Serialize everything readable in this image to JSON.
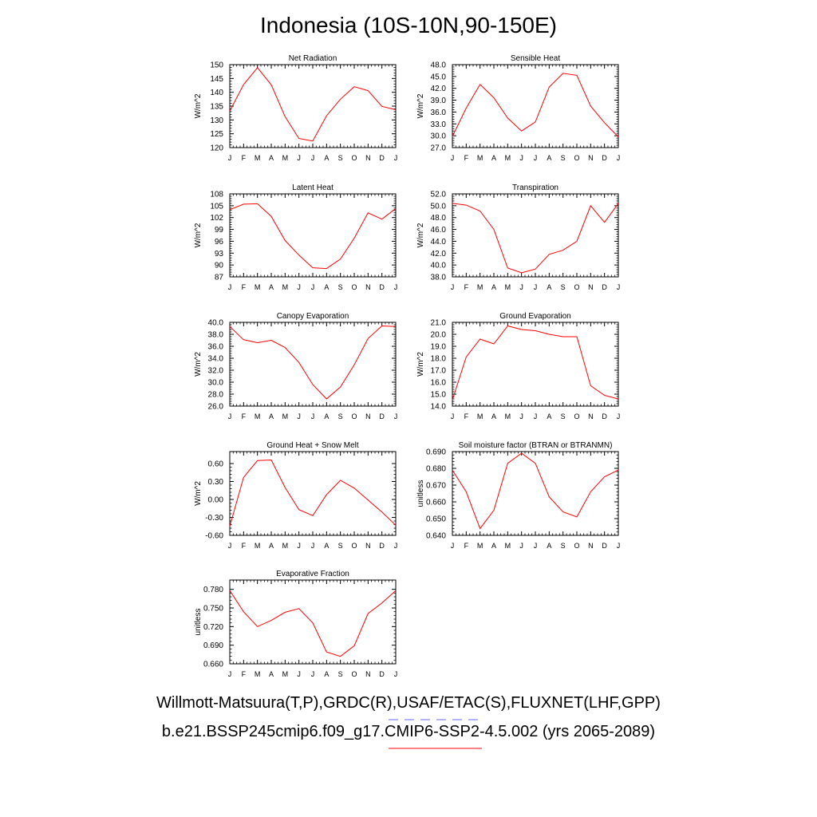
{
  "page": {
    "title": "Indonesia (10S-10N,90-150E)",
    "footer_line1": "Willmott-Matsuura(T,P),GRDC(R),USAF/ETAC(S),FLUXNET(LHF,GPP)",
    "footer_line2": "b.e21.BSSP245cmip6.f09_g17.CMIP6-SSP2-4.5.002 (yrs 2065-2089)",
    "legend_colors": {
      "obs": "#6666ff",
      "model": "#ff0000"
    }
  },
  "chart_data": [
    {
      "type": "line",
      "title": "Net Radiation",
      "ylabel": "W/m^2",
      "categories": [
        "J",
        "F",
        "M",
        "A",
        "M",
        "J",
        "J",
        "A",
        "S",
        "O",
        "N",
        "D",
        "J"
      ],
      "values": [
        133.2,
        142.8,
        148.9,
        142.7,
        131.2,
        123.3,
        122.4,
        131.5,
        137.5,
        142.0,
        140.6,
        134.9,
        133.7
      ],
      "ylim": [
        120,
        150
      ],
      "yticks": [
        "120",
        "125",
        "130",
        "135",
        "140",
        "145",
        "150"
      ],
      "color": "#ff0000"
    },
    {
      "type": "line",
      "title": "Sensible Heat",
      "ylabel": "W/m^2",
      "categories": [
        "J",
        "F",
        "M",
        "A",
        "M",
        "J",
        "J",
        "A",
        "S",
        "O",
        "N",
        "D",
        "J"
      ],
      "values": [
        29.8,
        37.0,
        43.0,
        39.6,
        34.5,
        31.2,
        33.5,
        42.3,
        45.8,
        45.3,
        37.5,
        33.3,
        29.7
      ],
      "ylim": [
        27.0,
        48.0
      ],
      "yticks": [
        "27.0",
        "30.0",
        "33.0",
        "36.0",
        "39.0",
        "42.0",
        "45.0",
        "48.0"
      ],
      "color": "#ff0000"
    },
    {
      "type": "line",
      "title": "Latent Heat",
      "ylabel": "W/m^2",
      "categories": [
        "J",
        "F",
        "M",
        "A",
        "M",
        "J",
        "J",
        "A",
        "S",
        "O",
        "N",
        "D",
        "J"
      ],
      "values": [
        104.0,
        105.4,
        105.5,
        102.3,
        96.2,
        92.5,
        89.3,
        89.1,
        91.5,
        96.8,
        103.2,
        101.6,
        104.3
      ],
      "ylim": [
        87,
        108
      ],
      "yticks": [
        "87",
        "90",
        "93",
        "96",
        "99",
        "102",
        "105",
        "108"
      ],
      "color": "#ff0000"
    },
    {
      "type": "line",
      "title": "Transpiration",
      "ylabel": "W/m^2",
      "categories": [
        "J",
        "F",
        "M",
        "A",
        "M",
        "J",
        "J",
        "A",
        "S",
        "O",
        "N",
        "D",
        "J"
      ],
      "values": [
        50.4,
        50.1,
        49.1,
        46.0,
        39.5,
        38.7,
        39.3,
        41.8,
        42.5,
        44.0,
        50.0,
        47.2,
        50.4
      ],
      "ylim": [
        38.0,
        52.0
      ],
      "yticks": [
        "38.0",
        "40.0",
        "42.0",
        "44.0",
        "46.0",
        "48.0",
        "50.0",
        "52.0"
      ],
      "color": "#ff0000"
    },
    {
      "type": "line",
      "title": "Canopy Evaporation",
      "ylabel": "W/m^2",
      "categories": [
        "J",
        "F",
        "M",
        "A",
        "M",
        "J",
        "J",
        "A",
        "S",
        "O",
        "N",
        "D",
        "J"
      ],
      "values": [
        39.3,
        37.1,
        36.6,
        37.0,
        35.8,
        33.3,
        29.6,
        27.2,
        29.2,
        32.9,
        37.3,
        39.4,
        39.3
      ],
      "ylim": [
        26.0,
        40.0
      ],
      "yticks": [
        "26.0",
        "28.0",
        "30.0",
        "32.0",
        "34.0",
        "36.0",
        "38.0",
        "40.0"
      ],
      "color": "#ff0000"
    },
    {
      "type": "line",
      "title": "Ground Evaporation",
      "ylabel": "W/m^2",
      "categories": [
        "J",
        "F",
        "M",
        "A",
        "M",
        "J",
        "J",
        "A",
        "S",
        "O",
        "N",
        "D",
        "J"
      ],
      "values": [
        14.5,
        18.1,
        19.6,
        19.2,
        20.7,
        20.4,
        20.3,
        20.0,
        19.8,
        19.8,
        15.7,
        14.9,
        14.6
      ],
      "ylim": [
        14.0,
        21.0
      ],
      "yticks": [
        "14.0",
        "15.0",
        "16.0",
        "17.0",
        "18.0",
        "19.0",
        "20.0",
        "21.0"
      ],
      "color": "#ff0000"
    },
    {
      "type": "line",
      "title": "Ground Heat + Snow Melt",
      "ylabel": "W/m^2",
      "categories": [
        "J",
        "F",
        "M",
        "A",
        "M",
        "J",
        "J",
        "A",
        "S",
        "O",
        "N",
        "D",
        "J"
      ],
      "values": [
        -0.45,
        0.37,
        0.65,
        0.66,
        0.2,
        -0.17,
        -0.27,
        0.08,
        0.32,
        0.19,
        -0.01,
        -0.21,
        -0.43
      ],
      "ylim": [
        -0.6,
        0.8
      ],
      "yticks": [
        "-0.60",
        "-0.30",
        "0.00",
        "0.30",
        "0.60"
      ],
      "ytick_values": [
        -0.6,
        -0.3,
        0.0,
        0.3,
        0.6
      ],
      "color": "#ff0000"
    },
    {
      "type": "line",
      "title": "Soil moisture factor (BTRAN or BTRANMN)",
      "ylabel": "unitless",
      "categories": [
        "J",
        "F",
        "M",
        "A",
        "M",
        "J",
        "J",
        "A",
        "S",
        "O",
        "N",
        "D",
        "J"
      ],
      "values": [
        0.679,
        0.666,
        0.644,
        0.655,
        0.683,
        0.689,
        0.683,
        0.663,
        0.654,
        0.651,
        0.666,
        0.675,
        0.679
      ],
      "ylim": [
        0.64,
        0.69
      ],
      "yticks": [
        "0.640",
        "0.650",
        "0.660",
        "0.670",
        "0.680",
        "0.690"
      ],
      "color": "#ff0000"
    },
    {
      "type": "line",
      "title": "Evaporative Fraction",
      "ylabel": "unitless",
      "categories": [
        "J",
        "F",
        "M",
        "A",
        "M",
        "J",
        "J",
        "A",
        "S",
        "O",
        "N",
        "D",
        "J"
      ],
      "values": [
        0.778,
        0.744,
        0.72,
        0.73,
        0.743,
        0.749,
        0.726,
        0.679,
        0.672,
        0.689,
        0.741,
        0.758,
        0.778
      ],
      "ylim": [
        0.66,
        0.795
      ],
      "yticks": [
        "0.660",
        "0.690",
        "0.720",
        "0.750",
        "0.780"
      ],
      "ytick_values": [
        0.66,
        0.69,
        0.72,
        0.75,
        0.78
      ],
      "color": "#ff0000"
    }
  ]
}
